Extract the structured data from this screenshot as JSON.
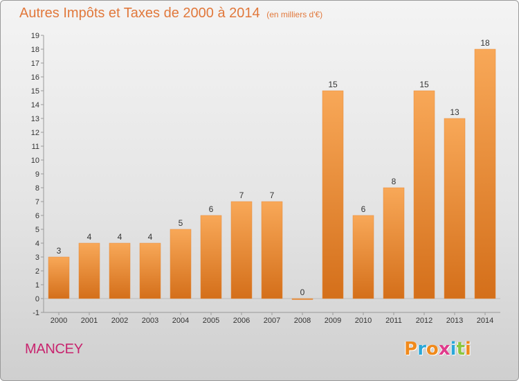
{
  "title": "Autres Impôts et Taxes de 2000 à 2014",
  "unit": "(en milliers d'€)",
  "commune": "MANCEY",
  "logo": {
    "text": "Proxiti",
    "letters": [
      {
        "ch": "P",
        "color": "#f08a1c"
      },
      {
        "ch": "r",
        "color": "#2aa7d8"
      },
      {
        "ch": "o",
        "color": "#f08a1c"
      },
      {
        "ch": "x",
        "color": "#e03c8c"
      },
      {
        "ch": "i",
        "color": "#2aa7d8"
      },
      {
        "ch": "t",
        "color": "#8cc63f"
      },
      {
        "ch": "i",
        "color": "#f08a1c"
      }
    ]
  },
  "colors": {
    "bar_light": "#f8a858",
    "bar_dark": "#d46f1a",
    "title": "#e1783b",
    "commune": "#c8246e"
  },
  "chart_data": {
    "type": "bar",
    "categories": [
      "2000",
      "2001",
      "2002",
      "2003",
      "2004",
      "2005",
      "2006",
      "2007",
      "2008",
      "2009",
      "2010",
      "2011",
      "2012",
      "2013",
      "2014"
    ],
    "values": [
      3,
      4,
      4,
      4,
      5,
      6,
      7,
      7,
      0,
      15,
      6,
      8,
      15,
      13,
      18
    ],
    "value_labels": [
      "3",
      "4",
      "4",
      "4",
      "5",
      "6",
      "7",
      "7",
      "0",
      "15",
      "6",
      "8",
      "15",
      "13",
      "18"
    ],
    "yticks": [
      "-1",
      "0",
      "1",
      "2",
      "3",
      "4",
      "5",
      "6",
      "7",
      "8",
      "9",
      "10",
      "11",
      "12",
      "13",
      "14",
      "15",
      "16",
      "17",
      "18",
      "19"
    ],
    "ylim": [
      -1,
      19
    ],
    "xlabel": "",
    "ylabel": "",
    "grid": false
  }
}
